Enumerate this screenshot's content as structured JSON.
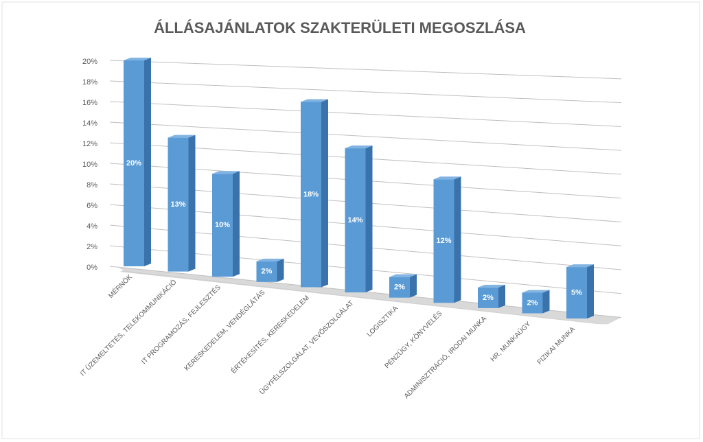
{
  "chart_data": {
    "type": "bar3d",
    "title": "ÁLLÁSAJÁNLATOK SZAKTERÜLETI MEGOSZLÁSA",
    "categories": [
      "MÉRNÖK",
      "IT ÜZEMELTETÉS, TELEKOMMUNIKÁCIÓ",
      "IT PROGRAMOZÁS, FEJLESZTÉS",
      "KERESKEDELEM, VENDÉGLÁTÁS",
      "ÉRTÉKESÍTÉS, KERESKEDELEM",
      "ÜGYFÉLSZOLGÁLAT, VEVŐSZOLGÁLAT",
      "LOGISZTIKA",
      "PÉNZÜGY, KÖNYVELÉS",
      "ADMINISZTRÁCIÓ, IRODAI MUNKA",
      "HR, MUNKAÜGY",
      "FIZIKAI MUNKA"
    ],
    "values": [
      20,
      13,
      10,
      2,
      18,
      14,
      2,
      12,
      2,
      2,
      5
    ],
    "value_labels": [
      "20%",
      "13%",
      "10%",
      "2%",
      "18%",
      "14%",
      "2%",
      "12%",
      "2%",
      "2%",
      "5%"
    ],
    "color": "#5b9bd5",
    "ylim": [
      0,
      20
    ],
    "yticks": [
      {
        "value": 0,
        "label": "0%"
      },
      {
        "value": 2,
        "label": "2%"
      },
      {
        "value": 4,
        "label": "4%"
      },
      {
        "value": 6,
        "label": "6%"
      },
      {
        "value": 8,
        "label": "8%"
      },
      {
        "value": 10,
        "label": "10%"
      },
      {
        "value": 12,
        "label": "12%"
      },
      {
        "value": 14,
        "label": "14%"
      },
      {
        "value": 16,
        "label": "16%"
      },
      {
        "value": 18,
        "label": "18%"
      },
      {
        "value": 20,
        "label": "20%"
      }
    ],
    "grid": true
  }
}
